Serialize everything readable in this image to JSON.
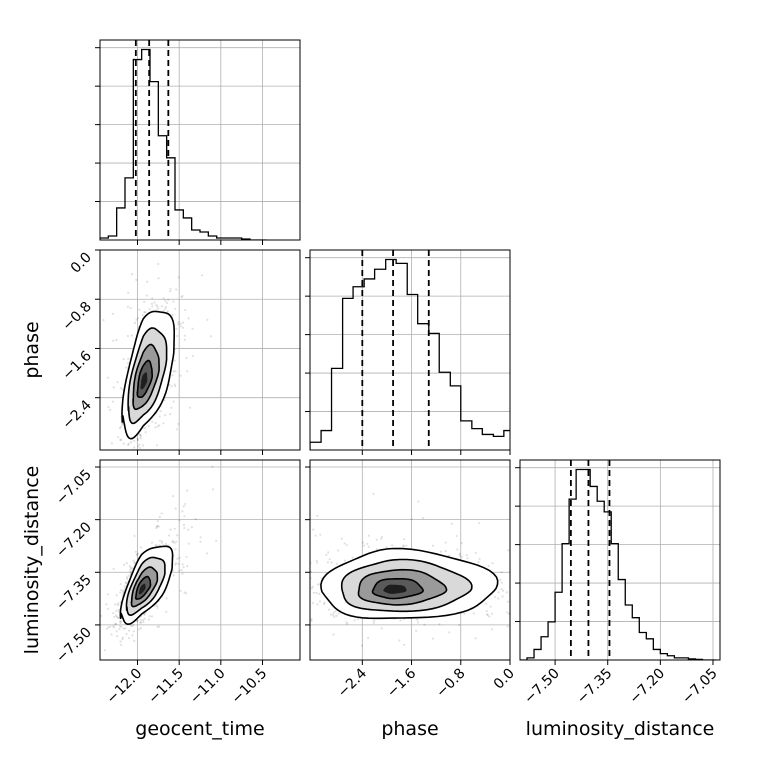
{
  "chart_data": {
    "type": "corner",
    "parameters": [
      "geocent_time",
      "phase",
      "luminosity_distance"
    ],
    "axes": {
      "geocent_time": {
        "label": "geocent_time",
        "lim": [
          -12.45,
          -10.05
        ],
        "ticks": [
          -12.0,
          -11.5,
          -11.0,
          -10.5
        ],
        "tick_labels": [
          "−12.0",
          "−11.5",
          "−11.0",
          "−10.5"
        ]
      },
      "phase": {
        "label": "phase",
        "lim": [
          -3.25,
          0.0
        ],
        "ticks": [
          -2.4,
          -1.6,
          -0.8,
          0.0
        ],
        "tick_labels": [
          "−2.4",
          "−1.6",
          "−0.8",
          "0.0"
        ]
      },
      "luminosity_distance": {
        "label": "luminosity_distance",
        "lim": [
          -7.6,
          -7.03
        ],
        "ticks": [
          -7.5,
          -7.35,
          -7.2,
          -7.05
        ],
        "tick_labels": [
          "−7.50",
          "−7.35",
          "−7.20",
          "−7.05"
        ]
      }
    },
    "histograms": [
      {
        "param": "geocent_time",
        "bins": [
          -12.45,
          -12.35,
          -12.25,
          -12.15,
          -12.05,
          -11.95,
          -11.85,
          -11.75,
          -11.65,
          -11.55,
          -11.45,
          -11.35,
          -11.25,
          -11.15,
          -11.05,
          -10.95,
          -10.85,
          -10.75,
          -10.65,
          -10.55,
          -10.45
        ],
        "counts": [
          1,
          2,
          16,
          31,
          90,
          95,
          79,
          52,
          41,
          15,
          11,
          5,
          4,
          2,
          1,
          1,
          1,
          0.5,
          0,
          0
        ],
        "quantiles": [
          -12.02,
          -11.86,
          -11.63
        ]
      },
      {
        "param": "phase",
        "bins": [
          -3.25,
          -3.07,
          -2.9,
          -2.72,
          -2.55,
          -2.37,
          -2.2,
          -2.02,
          -1.85,
          -1.67,
          -1.5,
          -1.32,
          -1.15,
          -0.97,
          -0.8,
          -0.62,
          -0.45,
          -0.27,
          -0.1,
          0.0
        ],
        "counts": [
          4,
          10,
          42,
          78,
          84,
          88,
          93,
          98,
          96,
          80,
          65,
          60,
          40,
          33,
          15,
          11,
          8,
          7,
          10
        ],
        "quantiles": [
          -2.4,
          -1.9,
          -1.32
        ]
      },
      {
        "param": "luminosity_distance",
        "bins": [
          -7.6,
          -7.58,
          -7.56,
          -7.54,
          -7.52,
          -7.5,
          -7.48,
          -7.46,
          -7.44,
          -7.42,
          -7.4,
          -7.38,
          -7.36,
          -7.34,
          -7.32,
          -7.3,
          -7.28,
          -7.26,
          -7.24,
          -7.22,
          -7.2,
          -7.18,
          -7.16,
          -7.14,
          -7.12,
          -7.1,
          -7.08,
          -7.06,
          -7.04
        ],
        "counts": [
          0,
          1,
          5,
          11,
          18,
          32,
          55,
          76,
          90,
          90,
          82,
          75,
          70,
          55,
          38,
          26,
          20,
          13,
          10,
          5,
          3,
          2,
          1,
          1,
          0.5,
          0.3,
          0,
          0
        ],
        "quantiles": [
          -7.455,
          -7.405,
          -7.345
        ]
      }
    ],
    "scatter_density": [
      {
        "x": "geocent_time",
        "y": "phase",
        "peak": [
          -11.93,
          -2.15
        ],
        "sd": [
          0.12,
          0.42
        ],
        "correlation": 0.55
      },
      {
        "x": "geocent_time",
        "y": "luminosity_distance",
        "peak": [
          -11.95,
          -7.4
        ],
        "sd": [
          0.12,
          0.045
        ],
        "correlation": 0.65
      },
      {
        "x": "phase",
        "y": "luminosity_distance",
        "peak": [
          -1.9,
          -7.4
        ],
        "sd": [
          0.55,
          0.04
        ],
        "correlation": 0.05
      }
    ],
    "grid": true,
    "quantile_lines": "dashed"
  }
}
